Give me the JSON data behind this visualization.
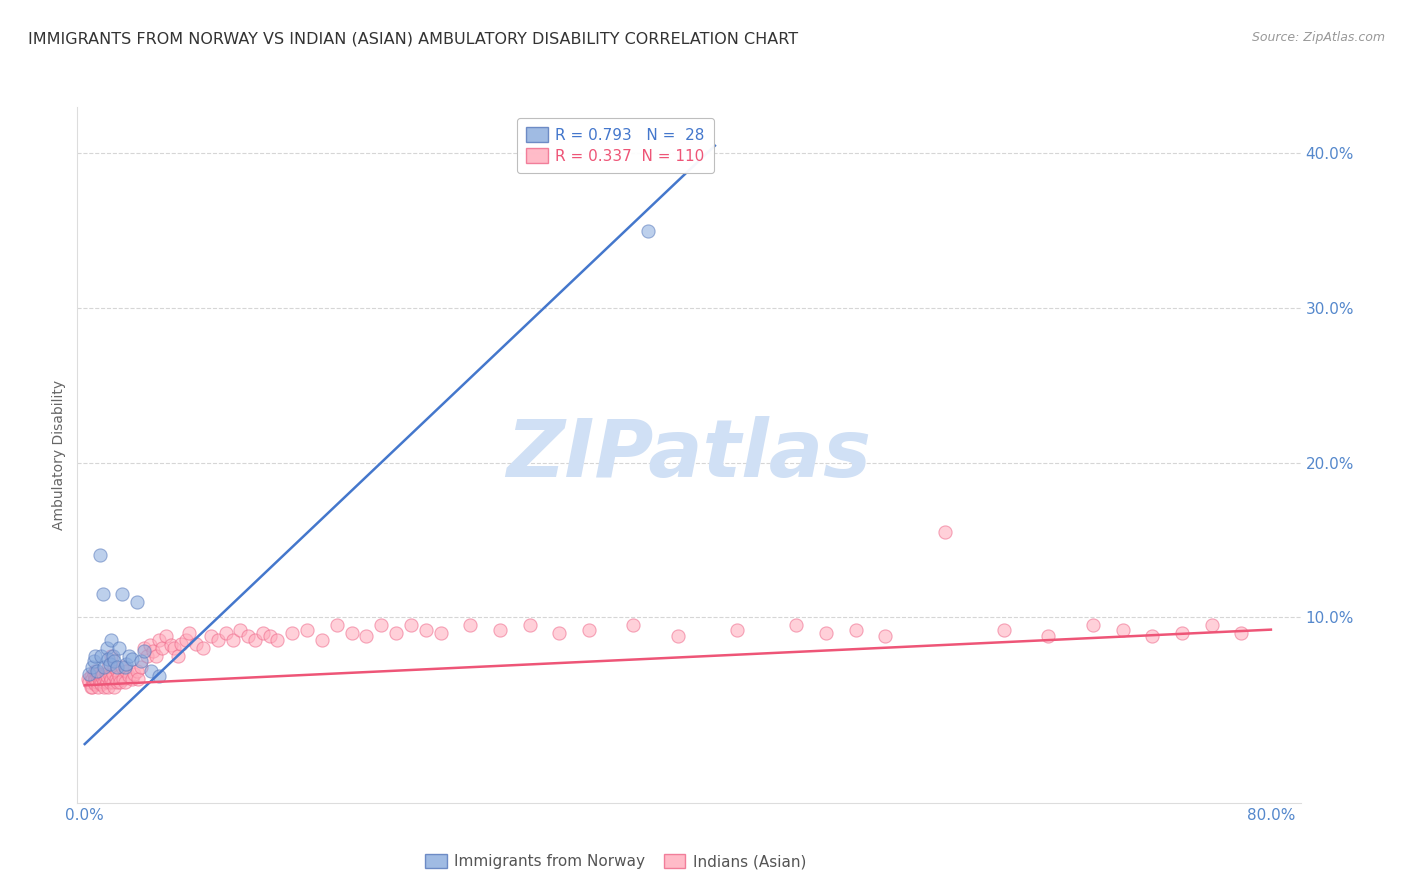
{
  "title": "IMMIGRANTS FROM NORWAY VS INDIAN (ASIAN) AMBULATORY DISABILITY CORRELATION CHART",
  "source": "Source: ZipAtlas.com",
  "ylabel": "Ambulatory Disability",
  "xlabel": "",
  "xlim_min": -0.005,
  "xlim_max": 0.82,
  "ylim_min": -0.02,
  "ylim_max": 0.43,
  "ytick_vals": [
    0.1,
    0.2,
    0.3,
    0.4
  ],
  "ytick_labels": [
    "10.0%",
    "20.0%",
    "30.0%",
    "40.0%"
  ],
  "xtick_vals": [
    0.0,
    0.1,
    0.2,
    0.3,
    0.4,
    0.5,
    0.6,
    0.7,
    0.8
  ],
  "xtick_labels": [
    "0.0%",
    "",
    "",
    "",
    "",
    "",
    "",
    "",
    "80.0%"
  ],
  "blue_R": 0.793,
  "blue_N": 28,
  "pink_R": 0.337,
  "pink_N": 110,
  "blue_scatter_color": "#88AADD",
  "blue_edge_color": "#5577BB",
  "pink_scatter_color": "#FFAABB",
  "pink_edge_color": "#EE6688",
  "trendline_blue": "#4477CC",
  "trendline_pink": "#EE5577",
  "watermark": "ZIPatlas",
  "watermark_color": "#D0E0F5",
  "legend_label_blue": "Immigrants from Norway",
  "legend_label_pink": "Indians (Asian)",
  "blue_scatter_x": [
    0.003,
    0.005,
    0.006,
    0.007,
    0.008,
    0.01,
    0.011,
    0.012,
    0.013,
    0.015,
    0.016,
    0.017,
    0.018,
    0.019,
    0.02,
    0.022,
    0.023,
    0.025,
    0.027,
    0.028,
    0.03,
    0.032,
    0.035,
    0.038,
    0.04,
    0.045,
    0.05,
    0.38
  ],
  "blue_scatter_y": [
    0.063,
    0.068,
    0.072,
    0.075,
    0.065,
    0.14,
    0.075,
    0.115,
    0.068,
    0.08,
    0.073,
    0.07,
    0.085,
    0.075,
    0.072,
    0.068,
    0.08,
    0.115,
    0.068,
    0.07,
    0.075,
    0.073,
    0.11,
    0.072,
    0.078,
    0.065,
    0.062,
    0.35
  ],
  "pink_scatter_x": [
    0.002,
    0.003,
    0.004,
    0.004,
    0.005,
    0.005,
    0.006,
    0.006,
    0.007,
    0.007,
    0.007,
    0.008,
    0.008,
    0.009,
    0.009,
    0.01,
    0.01,
    0.011,
    0.011,
    0.012,
    0.012,
    0.013,
    0.013,
    0.014,
    0.014,
    0.015,
    0.015,
    0.016,
    0.016,
    0.017,
    0.017,
    0.018,
    0.018,
    0.019,
    0.019,
    0.02,
    0.02,
    0.021,
    0.022,
    0.022,
    0.023,
    0.024,
    0.025,
    0.026,
    0.027,
    0.028,
    0.03,
    0.032,
    0.033,
    0.035,
    0.036,
    0.038,
    0.04,
    0.042,
    0.044,
    0.046,
    0.048,
    0.05,
    0.052,
    0.055,
    0.058,
    0.06,
    0.063,
    0.065,
    0.068,
    0.07,
    0.075,
    0.08,
    0.085,
    0.09,
    0.095,
    0.1,
    0.105,
    0.11,
    0.115,
    0.12,
    0.125,
    0.13,
    0.14,
    0.15,
    0.16,
    0.17,
    0.18,
    0.19,
    0.2,
    0.21,
    0.22,
    0.23,
    0.24,
    0.26,
    0.28,
    0.3,
    0.32,
    0.34,
    0.37,
    0.4,
    0.44,
    0.48,
    0.5,
    0.52,
    0.54,
    0.58,
    0.62,
    0.65,
    0.68,
    0.7,
    0.72,
    0.74,
    0.76,
    0.78
  ],
  "pink_scatter_y": [
    0.06,
    0.058,
    0.055,
    0.062,
    0.06,
    0.055,
    0.058,
    0.063,
    0.057,
    0.06,
    0.065,
    0.058,
    0.062,
    0.055,
    0.063,
    0.06,
    0.058,
    0.062,
    0.057,
    0.06,
    0.063,
    0.058,
    0.055,
    0.063,
    0.06,
    0.058,
    0.062,
    0.055,
    0.068,
    0.062,
    0.058,
    0.06,
    0.075,
    0.058,
    0.063,
    0.055,
    0.068,
    0.06,
    0.065,
    0.058,
    0.062,
    0.058,
    0.068,
    0.06,
    0.058,
    0.065,
    0.062,
    0.06,
    0.063,
    0.065,
    0.06,
    0.068,
    0.08,
    0.075,
    0.082,
    0.078,
    0.075,
    0.085,
    0.08,
    0.088,
    0.082,
    0.08,
    0.075,
    0.083,
    0.085,
    0.09,
    0.083,
    0.08,
    0.088,
    0.085,
    0.09,
    0.085,
    0.092,
    0.088,
    0.085,
    0.09,
    0.088,
    0.085,
    0.09,
    0.092,
    0.085,
    0.095,
    0.09,
    0.088,
    0.095,
    0.09,
    0.095,
    0.092,
    0.09,
    0.095,
    0.092,
    0.095,
    0.09,
    0.092,
    0.095,
    0.088,
    0.092,
    0.095,
    0.09,
    0.092,
    0.088,
    0.155,
    0.092,
    0.088,
    0.095,
    0.092,
    0.088,
    0.09,
    0.095,
    0.09
  ],
  "blue_trend_x0": 0.0,
  "blue_trend_y0": 0.018,
  "blue_trend_x1": 0.425,
  "blue_trend_y1": 0.405,
  "pink_trend_x0": 0.0,
  "pink_trend_y0": 0.056,
  "pink_trend_x1": 0.8,
  "pink_trend_y1": 0.092,
  "background_color": "#ffffff",
  "grid_color": "#cccccc",
  "title_color": "#333333",
  "axis_label_color": "#666666",
  "tick_color": "#5588CC",
  "title_fontsize": 11.5,
  "source_fontsize": 9,
  "axis_label_fontsize": 10,
  "tick_fontsize": 11
}
